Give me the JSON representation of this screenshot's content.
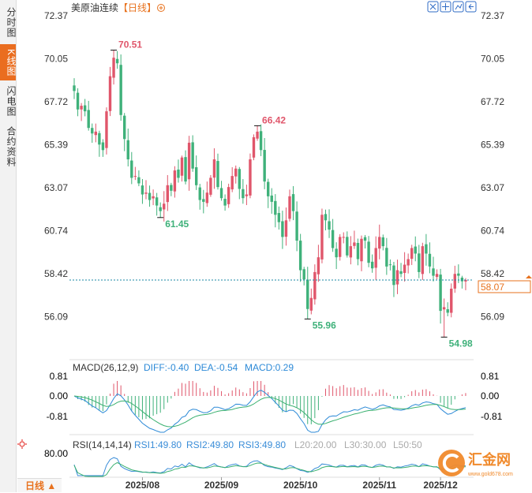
{
  "tabs": [
    {
      "label": "分时图",
      "active": false
    },
    {
      "label": "K线图",
      "active": true
    },
    {
      "label": "闪电图",
      "active": false
    },
    {
      "label": "合约资料",
      "active": false
    }
  ],
  "header": {
    "title": "美原油连续",
    "period": "【日线】",
    "add_icon": "plus-circle-icon"
  },
  "toolbar": {
    "icons": [
      "fullscreen-icon",
      "move-icon",
      "chart-type-icon",
      "back-icon"
    ]
  },
  "bottom_tab": {
    "label": "日线 ▲"
  },
  "watermark": {
    "text": "汇金网",
    "url": "www.gold678.com"
  },
  "colors": {
    "up": "#e0566b",
    "down": "#3fb17a",
    "diff": "#2d8ad7",
    "dea": "#39b06f",
    "rsi": "#3a8dd8"
  },
  "chart_data": [
    {
      "type": "candlestick",
      "title": "美原油连续 【日线】",
      "ylim": [
        53.8,
        72.37
      ],
      "yticks": [
        "72.37",
        "70.05",
        "67.72",
        "65.39",
        "63.07",
        "60.74",
        "58.42",
        "56.09"
      ],
      "xticks": [
        "2025/08",
        "2025/09",
        "2025/10",
        "2025/11",
        "2025/12"
      ],
      "last_price": "58.07",
      "annotations": [
        {
          "label": "70.51",
          "value": 70.51,
          "index": 11,
          "kind": "high"
        },
        {
          "label": "61.45",
          "value": 61.45,
          "index": 24,
          "kind": "low"
        },
        {
          "label": "66.42",
          "value": 66.42,
          "index": 51,
          "kind": "high"
        },
        {
          "label": "55.96",
          "value": 55.96,
          "index": 65,
          "kind": "low"
        },
        {
          "label": "54.98",
          "value": 54.98,
          "index": 103,
          "kind": "low"
        }
      ],
      "close": [
        68.3,
        67.3,
        67.5,
        67.2,
        66.3,
        66.0,
        66.1,
        65.4,
        65.1,
        67.2,
        69.1,
        70.1,
        69.8,
        67.0,
        65.7,
        64.6,
        63.6,
        63.7,
        63.3,
        62.7,
        62.8,
        62.4,
        62.6,
        62.1,
        61.8,
        62.2,
        63.2,
        62.9,
        64.0,
        63.6,
        64.7,
        63.4,
        65.5,
        64.1,
        63.2,
        62.4,
        62.3,
        62.8,
        63.6,
        64.6,
        63.1,
        62.5,
        62.1,
        63.1,
        63.7,
        64.1,
        63.0,
        62.5,
        62.7,
        64.6,
        65.8,
        66.1,
        65.1,
        63.4,
        62.6,
        62.3,
        61.6,
        61.2,
        60.4,
        61.3,
        62.6,
        61.8,
        60.2,
        58.6,
        58.1,
        56.5,
        57.1,
        58.5,
        59.3,
        61.6,
        61.3,
        60.8,
        59.8,
        59.3,
        60.4,
        60.4,
        59.4,
        59.9,
        60.1,
        59.2,
        60.3,
        60.2,
        59.0,
        58.7,
        59.8,
        60.4,
        59.9,
        58.8,
        58.9,
        57.8,
        58.6,
        58.4,
        58.9,
        59.2,
        59.8,
        59.5,
        58.5,
        59.9,
        59.5,
        58.8,
        58.3,
        58.4,
        56.4,
        56.6,
        56.3,
        57.6,
        58.4,
        58.3,
        58.0,
        58.07
      ],
      "macd_panel": {
        "title": "MACD(26,12,9)",
        "diff_label": "DIFF:-0.40",
        "dea_label": "DEA:-0.54",
        "macd_label": "MACD:0.29",
        "yticks": [
          "0.81",
          "0.00",
          "-0.81"
        ]
      },
      "rsi_panel": {
        "title": "RSI(14,14,14)",
        "rsi1_label": "RSI1:49.80",
        "rsi2_label": "RSI2:49.80",
        "rsi3_label": "RSI3:49.80",
        "l20_label": "L20:20.00",
        "l30_label": "L30:30.00",
        "l50_label": "L50:50",
        "yticks": [
          "80.00"
        ]
      }
    }
  ]
}
